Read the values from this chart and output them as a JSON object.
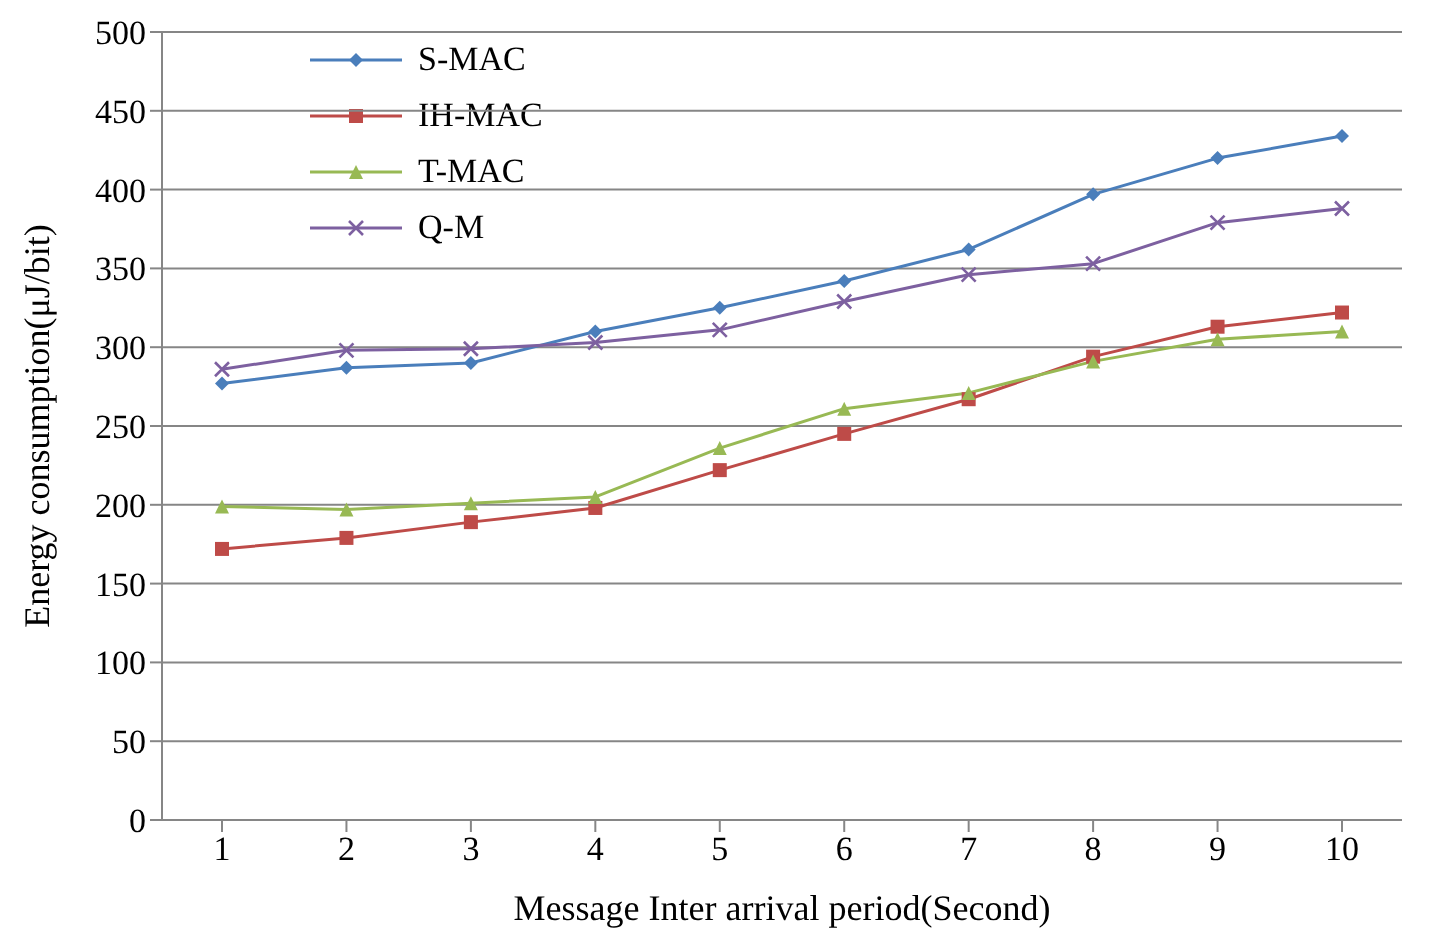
{
  "chart_data": {
    "type": "line",
    "xlabel": "Message Inter arrival period(Second)",
    "ylabel": "Energy consumption(μJ/bit)",
    "categories": [
      "1",
      "2",
      "3",
      "4",
      "5",
      "6",
      "7",
      "8",
      "9",
      "10"
    ],
    "ylim": [
      0,
      500
    ],
    "yticks": [
      0,
      50,
      100,
      150,
      200,
      250,
      300,
      350,
      400,
      450,
      500
    ],
    "grid": "y",
    "legend": "top left",
    "line_style": "solid",
    "series": [
      {
        "name": "S-MAC",
        "color": "#4a7ebb",
        "marker": "diamond",
        "values": [
          277,
          287,
          290,
          310,
          325,
          342,
          362,
          397,
          420,
          434
        ]
      },
      {
        "name": "IH-MAC",
        "color": "#be4b48",
        "marker": "square",
        "values": [
          172,
          179,
          189,
          198,
          222,
          245,
          267,
          294,
          313,
          322
        ]
      },
      {
        "name": "T-MAC",
        "color": "#98b954",
        "marker": "triangle",
        "values": [
          199,
          197,
          201,
          205,
          236,
          261,
          271,
          291,
          305,
          310
        ]
      },
      {
        "name": "Q-M",
        "color": "#7d60a0",
        "marker": "cross",
        "values": [
          286,
          298,
          299,
          303,
          311,
          329,
          346,
          353,
          379,
          388
        ]
      }
    ]
  }
}
